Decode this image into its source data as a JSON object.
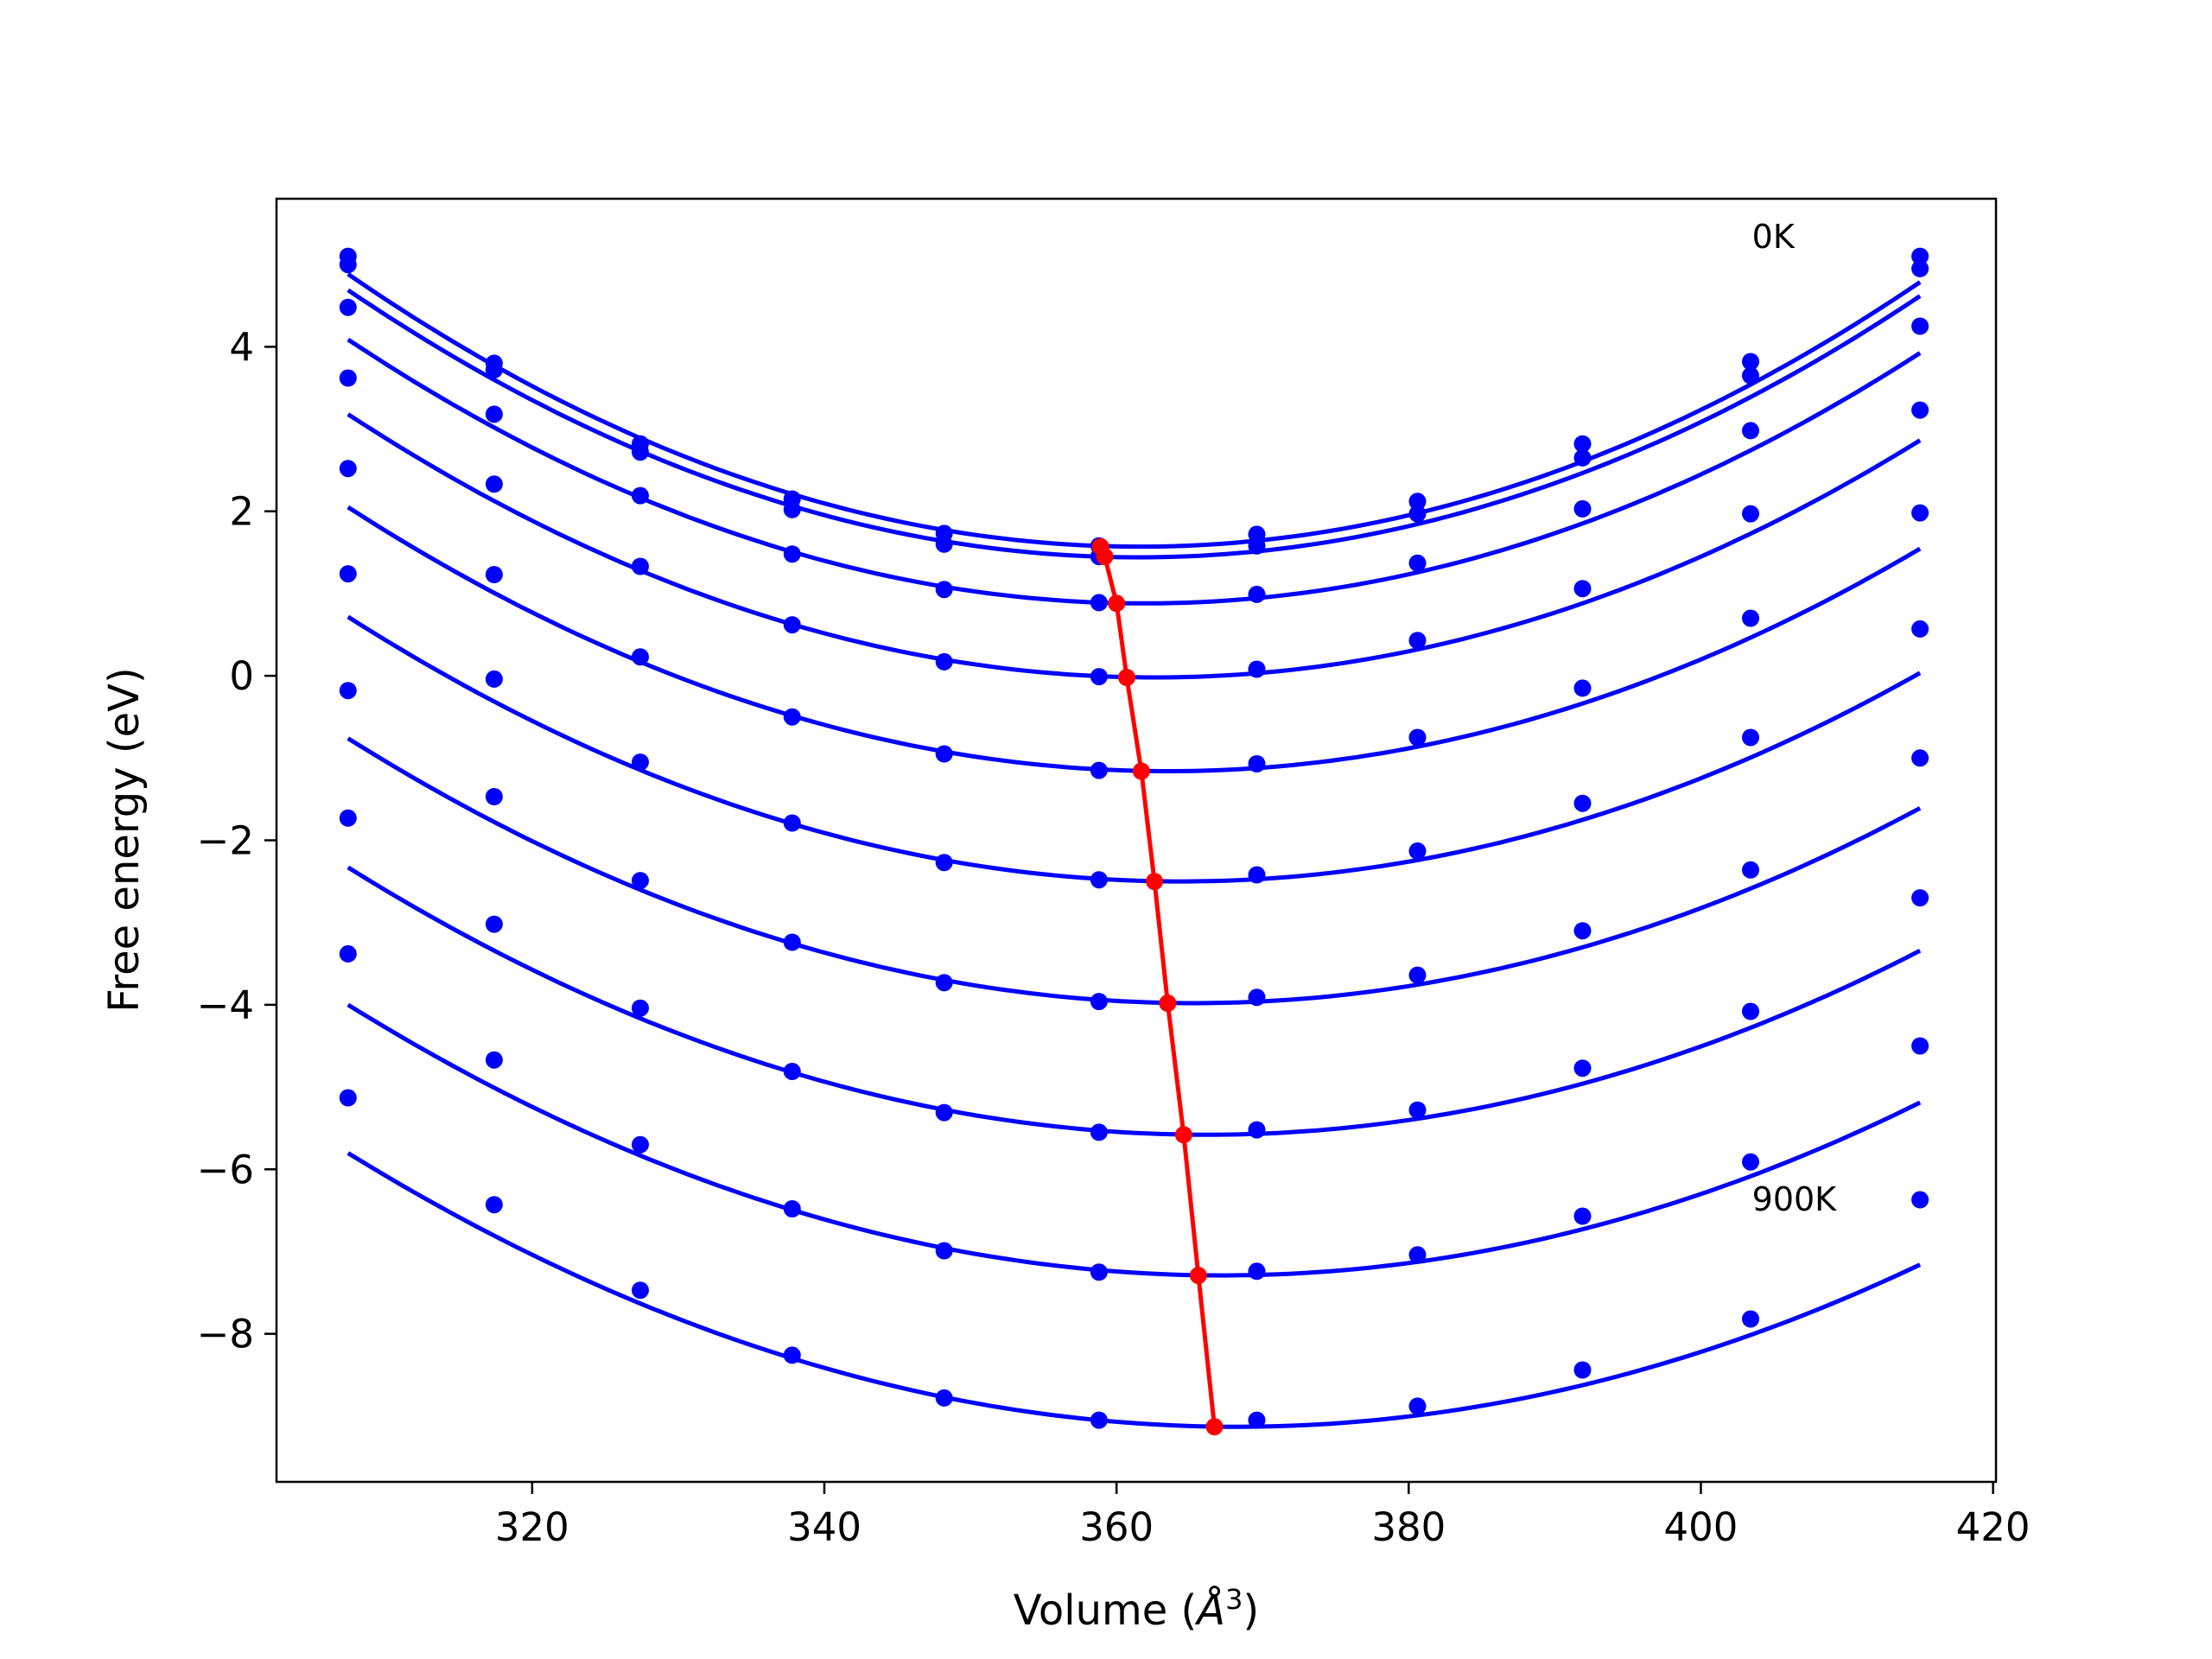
{
  "chart_data": {
    "type": "line",
    "xlabel_prefix": "Volume (",
    "xlabel_symbol": "Å",
    "xlabel_sup": "3",
    "xlabel_suffix": ")",
    "ylabel": "Free energy (eV)",
    "xlim": [
      302.5,
      420.2
    ],
    "ylim": [
      -9.8,
      5.8
    ],
    "xticks": [
      320,
      340,
      360,
      380,
      400,
      420
    ],
    "yticks": [
      -8,
      -6,
      -4,
      -2,
      0,
      2,
      4
    ],
    "xtick_labels": [
      "320",
      "340",
      "360",
      "380",
      "400",
      "420"
    ],
    "ytick_labels": [
      "−8",
      "−6",
      "−4",
      "−2",
      "0",
      "2",
      "4"
    ],
    "colors": {
      "curves": "#0000ff",
      "points": "#0000ff",
      "minimum_line": "#ff0000"
    },
    "annotations": [
      {
        "text": "0K",
        "x": 403.5,
        "y": 5.2
      },
      {
        "text": "900K",
        "x": 403.5,
        "y": -6.5
      }
    ],
    "volumes": [
      307.4,
      317.4,
      327.4,
      337.8,
      348.2,
      358.8,
      369.6,
      380.6,
      391.9,
      403.4,
      415.0
    ],
    "series": [
      {
        "values": [
          5.1,
          3.8,
          2.82,
          2.15,
          1.73,
          1.58,
          1.72,
          2.12,
          2.82,
          3.82,
          5.1
        ],
        "fit": {
          "a": 0.001128,
          "v0": 361.6,
          "e0": 1.57
        }
      },
      {
        "values": [
          5.0,
          3.72,
          2.72,
          2.02,
          1.6,
          1.45,
          1.58,
          1.97,
          2.65,
          3.65,
          4.95
        ],
        "fit": {
          "a": 0.00111,
          "v0": 361.5,
          "e0": 1.44
        }
      },
      {
        "values": [
          4.48,
          3.18,
          2.19,
          1.48,
          1.05,
          0.89,
          0.99,
          1.37,
          2.03,
          2.98,
          4.25
        ],
        "fit": {
          "a": 0.00108,
          "v0": 361.9,
          "e0": 0.88
        }
      },
      {
        "values": [
          3.62,
          2.33,
          1.33,
          0.62,
          0.17,
          -0.01,
          0.08,
          0.43,
          1.06,
          1.97,
          3.23
        ],
        "fit": {
          "a": 0.00105,
          "v0": 362.6,
          "e0": -0.02
        }
      },
      {
        "values": [
          2.52,
          1.23,
          0.23,
          -0.5,
          -0.95,
          -1.15,
          -1.07,
          -0.75,
          -0.15,
          0.7,
          1.98
        ],
        "fit": {
          "a": 0.00102,
          "v0": 363.5,
          "e0": -1.16
        }
      },
      {
        "values": [
          1.24,
          -0.04,
          -1.05,
          -1.79,
          -2.27,
          -2.48,
          -2.42,
          -2.13,
          -1.55,
          -0.75,
          0.57
        ],
        "fit": {
          "a": 0.00099,
          "v0": 364.4,
          "e0": -2.5
        }
      },
      {
        "values": [
          -0.18,
          -1.47,
          -2.49,
          -3.24,
          -3.73,
          -3.96,
          -3.91,
          -3.64,
          -3.1,
          -2.36,
          -1.0
        ],
        "fit": {
          "a": 0.00096,
          "v0": 365.3,
          "e0": -3.98
        }
      },
      {
        "values": [
          -1.73,
          -3.02,
          -4.04,
          -4.81,
          -5.31,
          -5.55,
          -5.52,
          -5.28,
          -4.77,
          -4.08,
          -2.7
        ],
        "fit": {
          "a": 0.00094,
          "v0": 366.2,
          "e0": -5.58
        }
      },
      {
        "values": [
          -3.38,
          -4.67,
          -5.7,
          -6.48,
          -6.99,
          -7.25,
          -7.24,
          -7.04,
          -6.57,
          -5.91,
          -4.5
        ],
        "fit": {
          "a": 0.00092,
          "v0": 367.2,
          "e0": -7.29
        }
      },
      {
        "values": [
          -5.13,
          -6.43,
          -7.47,
          -8.26,
          -8.78,
          -9.05,
          -9.05,
          -8.88,
          -8.44,
          -7.82,
          -6.37
        ],
        "fit": {
          "a": 0.0009,
          "v0": 368.2,
          "e0": -9.13
        }
      }
    ],
    "minimum_curve": {
      "x": [
        358.9,
        359.2,
        360.0,
        360.7,
        361.7,
        362.6,
        363.5,
        364.6,
        365.6,
        366.7
      ],
      "y": [
        1.57,
        1.45,
        0.88,
        -0.02,
        -1.16,
        -2.5,
        -3.98,
        -5.58,
        -7.29,
        -9.13
      ]
    }
  }
}
